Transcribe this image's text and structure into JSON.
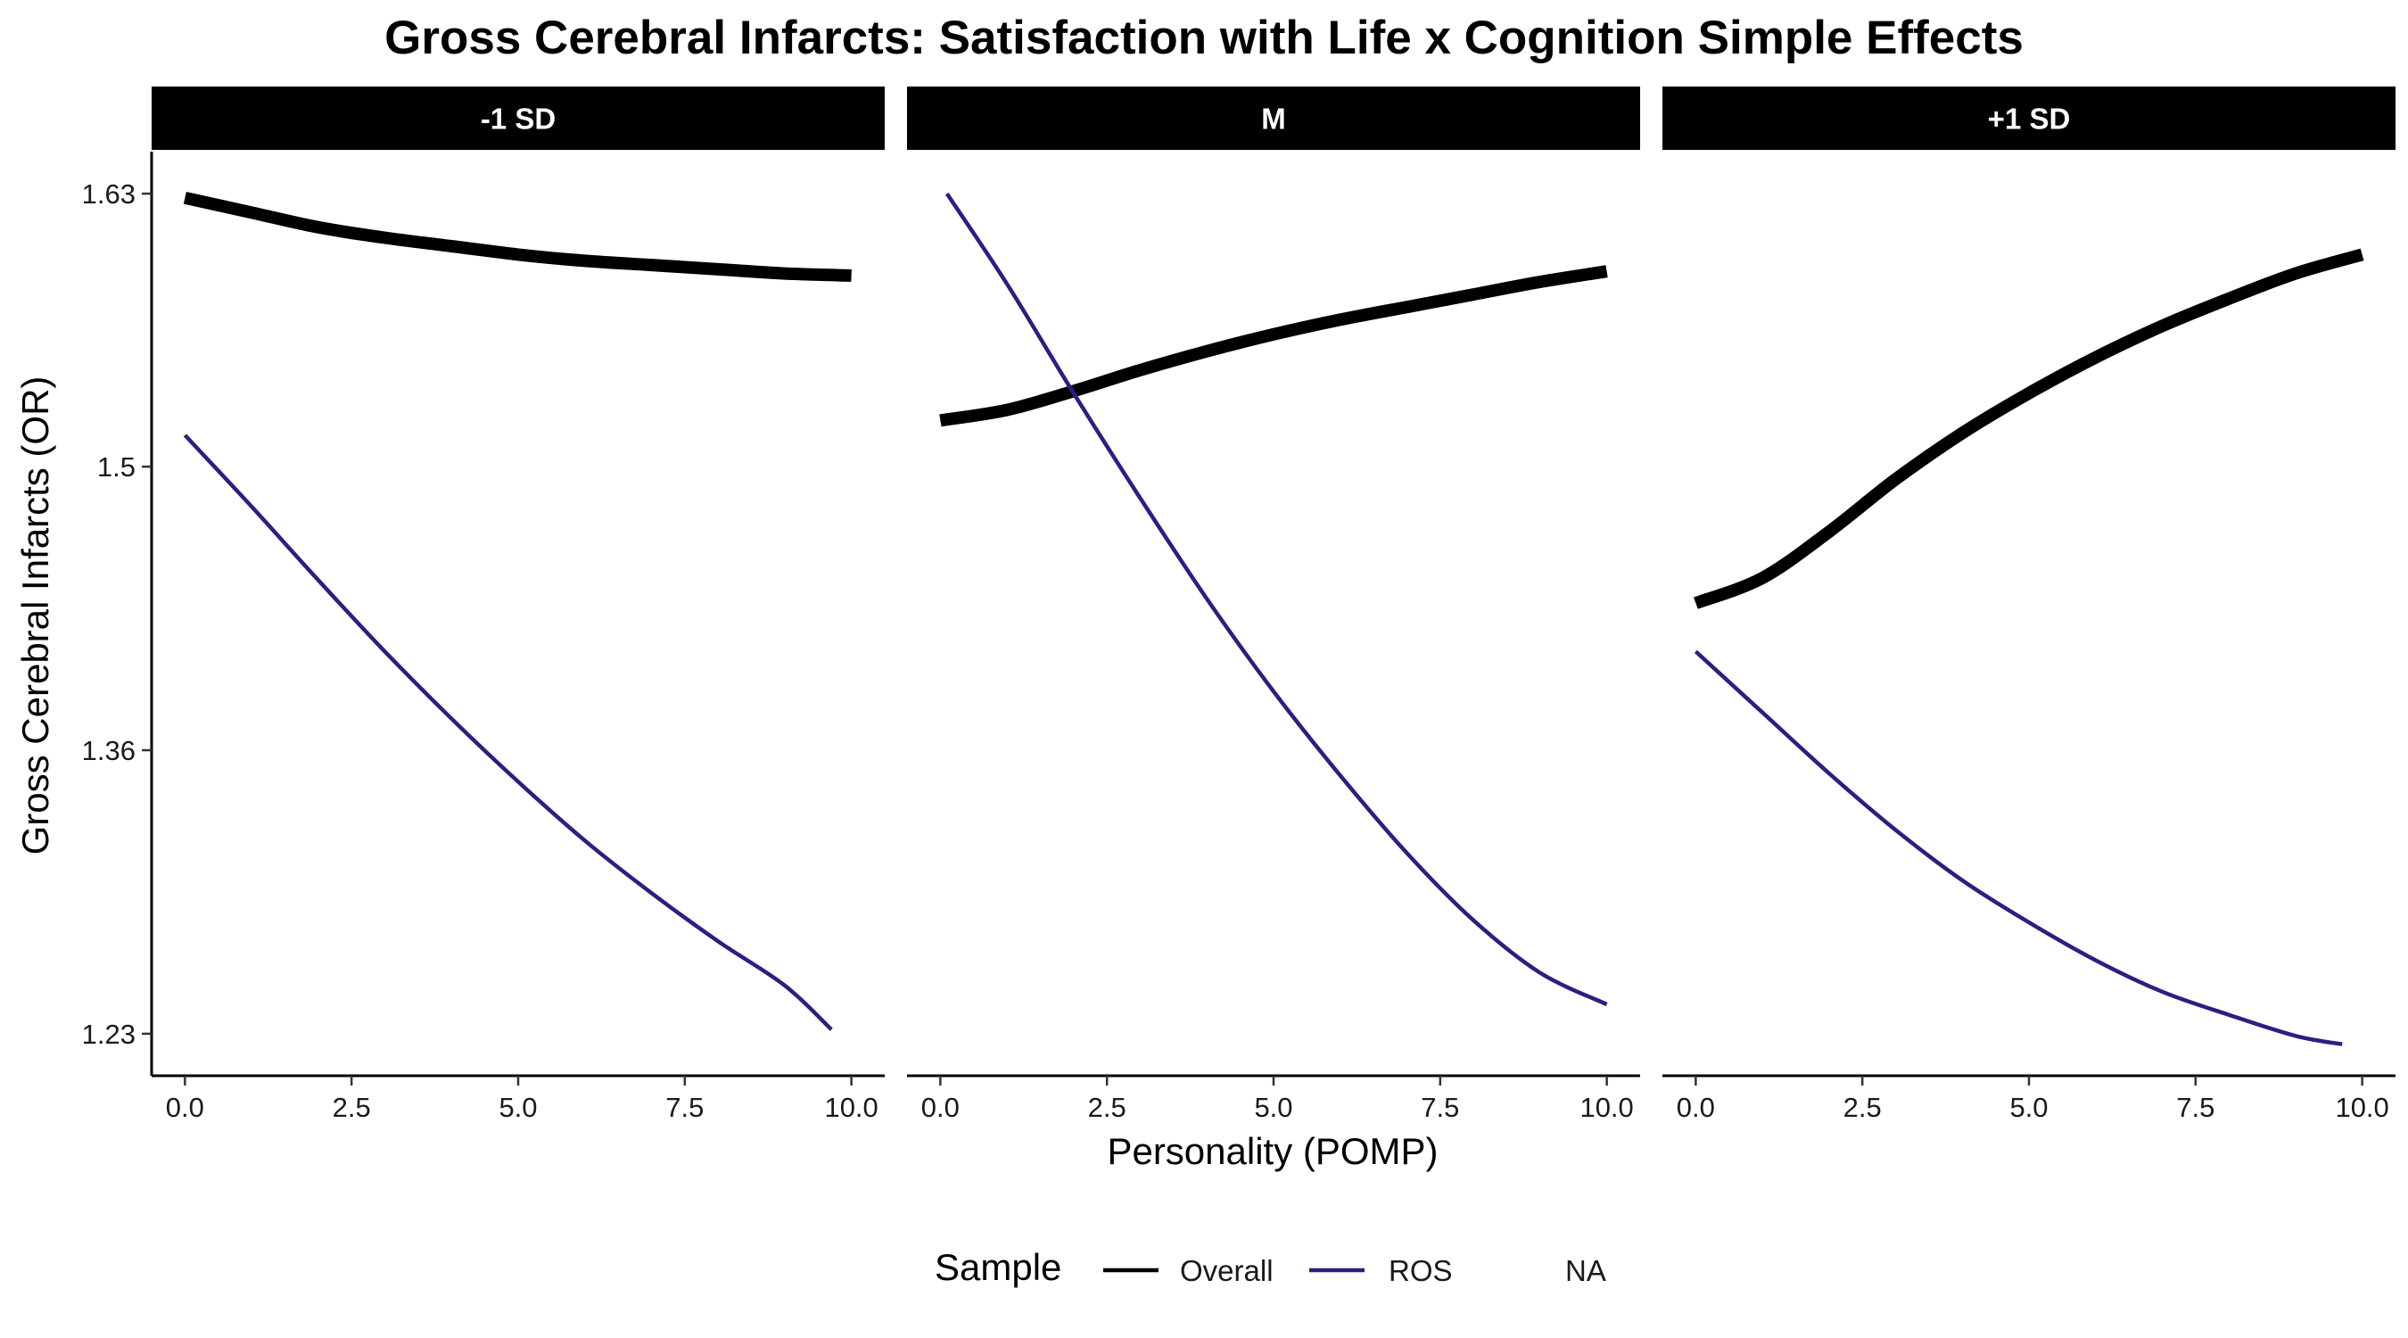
{
  "chart_data": {
    "type": "line",
    "title": "Gross Cerebral Infarcts: Satisfaction with Life x Cognition Simple Effects",
    "xlabel": "Personality (POMP)",
    "ylabel": "Gross Cerebral Infarcts (OR)",
    "xlim": [
      -0.5,
      10.5
    ],
    "ylim": [
      1.21,
      1.65
    ],
    "x_ticks": [
      0,
      2.5,
      5,
      7.5,
      10
    ],
    "x_tick_labels": [
      "0.0",
      "2.5",
      "5.0",
      "7.5",
      "10.0"
    ],
    "y_ticks": [
      1.23,
      1.365,
      1.5,
      1.63
    ],
    "y_tick_labels": [
      "1.23",
      "1.36",
      "1.5",
      "1.63"
    ],
    "grid": false,
    "legend": {
      "title": "Sample",
      "position": "bottom",
      "entries": [
        {
          "label": "Overall",
          "color": "#000000"
        },
        {
          "label": "ROS",
          "color": "#2d1e80"
        },
        {
          "label": "NA",
          "color": null
        }
      ]
    },
    "panels": [
      {
        "label": "-1 SD",
        "series": [
          {
            "name": "Overall",
            "color": "#000000",
            "width": "thick",
            "x": [
              0,
              1,
              2,
              3,
              4,
              5,
              6,
              7,
              8,
              9,
              10
            ],
            "y": [
              1.628,
              1.621,
              1.614,
              1.609,
              1.605,
              1.601,
              1.598,
              1.596,
              1.594,
              1.592,
              1.591
            ]
          },
          {
            "name": "ROS",
            "color": "#2d1e80",
            "width": "thin",
            "x": [
              0,
              1,
              2,
              3,
              4,
              5,
              6,
              7,
              8,
              9,
              9.7
            ],
            "y": [
              1.515,
              1.481,
              1.446,
              1.412,
              1.38,
              1.35,
              1.322,
              1.297,
              1.274,
              1.253,
              1.232
            ]
          }
        ]
      },
      {
        "label": "M",
        "series": [
          {
            "name": "Overall",
            "color": "#000000",
            "width": "thick",
            "x": [
              0,
              1,
              2,
              3,
              4,
              5,
              6,
              7,
              8,
              9,
              10
            ],
            "y": [
              1.522,
              1.527,
              1.536,
              1.546,
              1.555,
              1.563,
              1.57,
              1.576,
              1.582,
              1.588,
              1.593
            ]
          },
          {
            "name": "ROS",
            "color": "#2d1e80",
            "width": "thin",
            "x": [
              0.1,
              1,
              2,
              3,
              4,
              5,
              6,
              7,
              8,
              9,
              10
            ],
            "y": [
              1.63,
              1.587,
              1.535,
              1.485,
              1.437,
              1.393,
              1.353,
              1.316,
              1.284,
              1.259,
              1.244
            ]
          }
        ]
      },
      {
        "label": "+1 SD",
        "series": [
          {
            "name": "Overall",
            "color": "#000000",
            "width": "thick",
            "x": [
              0,
              1,
              2,
              3,
              4,
              5,
              6,
              7,
              8,
              9,
              10
            ],
            "y": [
              1.435,
              1.447,
              1.469,
              1.494,
              1.516,
              1.535,
              1.552,
              1.567,
              1.58,
              1.592,
              1.601
            ]
          },
          {
            "name": "ROS",
            "color": "#2d1e80",
            "width": "thin",
            "x": [
              0,
              1,
              2,
              3,
              4,
              5,
              6,
              7,
              8,
              9,
              9.7
            ],
            "y": [
              1.412,
              1.383,
              1.354,
              1.327,
              1.303,
              1.283,
              1.265,
              1.25,
              1.239,
              1.229,
              1.225
            ]
          }
        ]
      }
    ]
  }
}
